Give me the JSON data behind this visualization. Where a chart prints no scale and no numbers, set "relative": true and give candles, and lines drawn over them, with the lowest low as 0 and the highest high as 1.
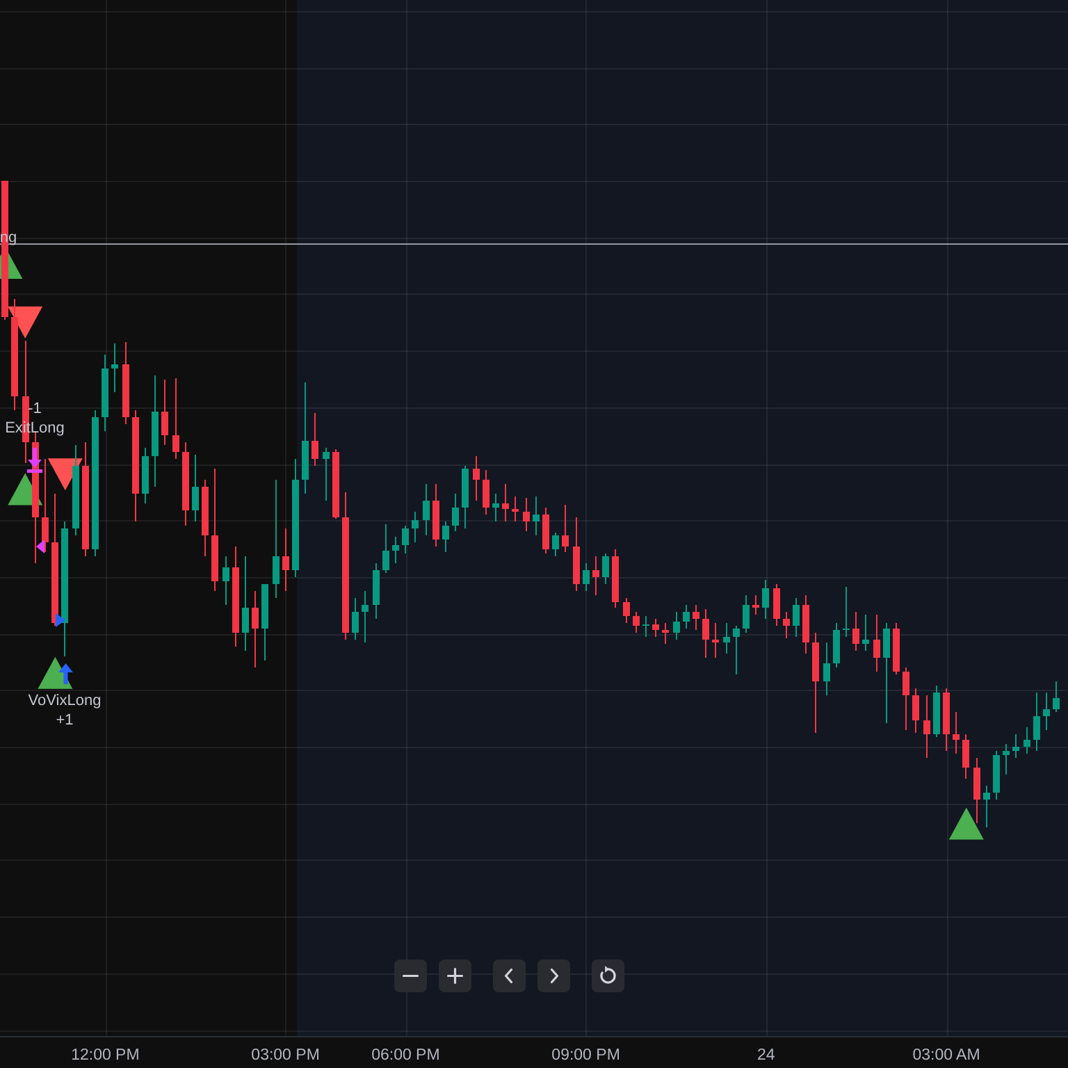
{
  "chart_data": {
    "type": "candlestick",
    "relative": true,
    "categories": [
      null,
      null,
      null,
      null,
      null,
      null,
      null,
      null,
      null,
      null,
      "12:00 PM",
      null,
      null,
      null,
      null,
      null,
      null,
      null,
      null,
      null,
      null,
      null,
      null,
      null,
      null,
      null,
      null,
      null,
      "03:00 PM",
      null,
      null,
      null,
      null,
      null,
      null,
      null,
      null,
      null,
      null,
      null,
      "06:00 PM",
      null,
      null,
      null,
      null,
      null,
      null,
      null,
      null,
      null,
      null,
      null,
      null,
      null,
      null,
      null,
      null,
      null,
      "09:00 PM",
      null,
      null,
      null,
      null,
      null,
      null,
      null,
      null,
      null,
      null,
      null,
      null,
      null,
      null,
      null,
      null,
      null,
      "24",
      null,
      null,
      null,
      null,
      null,
      null,
      null,
      null,
      null,
      null,
      null,
      null,
      null,
      null,
      null,
      null,
      null,
      "03:00 AM",
      null,
      null,
      null,
      null,
      null,
      null,
      null,
      null,
      null,
      null,
      null
    ],
    "ohlc": [
      [
        1,
        1,
        0.785,
        0.789
      ],
      [
        0.789,
        0.817,
        0.645,
        0.667
      ],
      [
        0.667,
        0.753,
        0.563,
        0.596
      ],
      [
        0.596,
        0.613,
        0.409,
        0.48
      ],
      [
        0.48,
        0.57,
        0.426,
        0.441
      ],
      [
        0.441,
        0.516,
        0.312,
        0.316
      ],
      [
        0.316,
        0.473,
        0.265,
        0.462
      ],
      [
        0.462,
        0.591,
        0.452,
        0.559
      ],
      [
        0.559,
        0.596,
        0.419,
        0.43
      ],
      [
        0.43,
        0.645,
        0.419,
        0.634
      ],
      [
        0.634,
        0.731,
        0.613,
        0.71
      ],
      [
        0.71,
        0.748,
        0.673,
        0.716
      ],
      [
        0.716,
        0.751,
        0.624,
        0.634
      ],
      [
        0.634,
        0.645,
        0.473,
        0.516
      ],
      [
        0.516,
        0.587,
        0.501,
        0.574
      ],
      [
        0.574,
        0.699,
        0.527,
        0.643
      ],
      [
        0.643,
        0.692,
        0.591,
        0.606
      ],
      [
        0.606,
        0.695,
        0.57,
        0.581
      ],
      [
        0.581,
        0.596,
        0.467,
        0.49
      ],
      [
        0.49,
        0.576,
        0.473,
        0.527
      ],
      [
        0.527,
        0.538,
        0.419,
        0.452
      ],
      [
        0.452,
        0.555,
        0.366,
        0.381
      ],
      [
        0.381,
        0.419,
        0.344,
        0.402
      ],
      [
        0.402,
        0.434,
        0.28,
        0.301
      ],
      [
        0.301,
        0.419,
        0.273,
        0.34
      ],
      [
        0.34,
        0.366,
        0.247,
        0.308
      ],
      [
        0.308,
        0.376,
        0.258,
        0.376
      ],
      [
        0.376,
        0.538,
        0.355,
        0.419
      ],
      [
        0.419,
        0.462,
        0.366,
        0.398
      ],
      [
        0.398,
        0.57,
        0.387,
        0.538
      ],
      [
        0.538,
        0.688,
        0.516,
        0.598
      ],
      [
        0.598,
        0.641,
        0.559,
        0.57
      ],
      [
        0.57,
        0.587,
        0.505,
        0.581
      ],
      [
        0.581,
        0.585,
        0.477,
        0.48
      ],
      [
        0.48,
        0.518,
        0.29,
        0.301
      ],
      [
        0.301,
        0.355,
        0.29,
        0.333
      ],
      [
        0.333,
        0.366,
        0.286,
        0.344
      ],
      [
        0.344,
        0.409,
        0.323,
        0.398
      ],
      [
        0.398,
        0.469,
        0.394,
        0.428
      ],
      [
        0.428,
        0.449,
        0.409,
        0.437
      ],
      [
        0.437,
        0.467,
        0.424,
        0.462
      ],
      [
        0.462,
        0.488,
        0.441,
        0.475
      ],
      [
        0.475,
        0.531,
        0.452,
        0.505
      ],
      [
        0.505,
        0.531,
        0.434,
        0.445
      ],
      [
        0.445,
        0.473,
        0.426,
        0.467
      ],
      [
        0.467,
        0.516,
        0.458,
        0.495
      ],
      [
        0.495,
        0.559,
        0.462,
        0.555
      ],
      [
        0.555,
        0.574,
        0.505,
        0.538
      ],
      [
        0.538,
        0.553,
        0.484,
        0.495
      ],
      [
        0.495,
        0.516,
        0.473,
        0.501
      ],
      [
        0.501,
        0.531,
        0.473,
        0.492
      ],
      [
        0.492,
        0.512,
        0.473,
        0.488
      ],
      [
        0.488,
        0.51,
        0.458,
        0.473
      ],
      [
        0.473,
        0.512,
        0.452,
        0.484
      ],
      [
        0.484,
        0.495,
        0.424,
        0.43
      ],
      [
        0.43,
        0.456,
        0.419,
        0.452
      ],
      [
        0.452,
        0.499,
        0.426,
        0.434
      ],
      [
        0.434,
        0.48,
        0.366,
        0.376
      ],
      [
        0.376,
        0.409,
        0.366,
        0.398
      ],
      [
        0.398,
        0.419,
        0.359,
        0.387
      ],
      [
        0.387,
        0.424,
        0.376,
        0.419
      ],
      [
        0.419,
        0.43,
        0.34,
        0.348
      ],
      [
        0.348,
        0.355,
        0.316,
        0.327
      ],
      [
        0.327,
        0.333,
        0.301,
        0.312
      ],
      [
        0.312,
        0.327,
        0.295,
        0.314
      ],
      [
        0.314,
        0.323,
        0.295,
        0.305
      ],
      [
        0.305,
        0.316,
        0.284,
        0.301
      ],
      [
        0.301,
        0.333,
        0.29,
        0.318
      ],
      [
        0.318,
        0.344,
        0.308,
        0.333
      ],
      [
        0.333,
        0.344,
        0.305,
        0.323
      ],
      [
        0.323,
        0.338,
        0.262,
        0.29
      ],
      [
        0.29,
        0.316,
        0.262,
        0.286
      ],
      [
        0.286,
        0.316,
        0.269,
        0.295
      ],
      [
        0.295,
        0.312,
        0.237,
        0.308
      ],
      [
        0.308,
        0.359,
        0.301,
        0.344
      ],
      [
        0.344,
        0.359,
        0.329,
        0.34
      ],
      [
        0.34,
        0.383,
        0.323,
        0.37
      ],
      [
        0.37,
        0.376,
        0.312,
        0.323
      ],
      [
        0.323,
        0.333,
        0.292,
        0.312
      ],
      [
        0.312,
        0.355,
        0.295,
        0.344
      ],
      [
        0.344,
        0.359,
        0.269,
        0.286
      ],
      [
        0.286,
        0.301,
        0.146,
        0.226
      ],
      [
        0.226,
        0.286,
        0.204,
        0.254
      ],
      [
        0.254,
        0.316,
        0.247,
        0.305
      ],
      [
        0.305,
        0.372,
        0.295,
        0.308
      ],
      [
        0.308,
        0.333,
        0.273,
        0.284
      ],
      [
        0.284,
        0.329,
        0.273,
        0.29
      ],
      [
        0.29,
        0.329,
        0.241,
        0.262
      ],
      [
        0.262,
        0.316,
        0.161,
        0.308
      ],
      [
        0.308,
        0.316,
        0.237,
        0.241
      ],
      [
        0.241,
        0.247,
        0.151,
        0.204
      ],
      [
        0.204,
        0.215,
        0.146,
        0.166
      ],
      [
        0.166,
        0.204,
        0.108,
        0.144
      ],
      [
        0.144,
        0.219,
        0.14,
        0.209
      ],
      [
        0.209,
        0.215,
        0.118,
        0.144
      ],
      [
        0.144,
        0.178,
        0.114,
        0.135
      ],
      [
        0.135,
        0.144,
        0.075,
        0.092
      ],
      [
        0.092,
        0.108,
        0.006,
        0.043
      ],
      [
        0.043,
        0.065,
        0,
        0.054
      ],
      [
        0.054,
        0.118,
        0.043,
        0.112
      ],
      [
        0.112,
        0.129,
        0.082,
        0.118
      ],
      [
        0.118,
        0.144,
        0.108,
        0.125
      ],
      [
        0.125,
        0.155,
        0.114,
        0.135
      ],
      [
        0.135,
        0.209,
        0.118,
        0.172
      ],
      [
        0.172,
        0.209,
        0.151,
        0.183
      ],
      [
        0.183,
        0.226,
        0.178,
        0.2
      ]
    ],
    "colors": [
      "#f23645",
      "#f23645",
      "#f23645",
      "#f23645",
      "#f23645",
      "#f23645",
      "#089981",
      "#089981",
      "#f23645",
      "#089981",
      "#089981",
      "#089981",
      "#f23645",
      "#f23645",
      "#089981",
      "#089981",
      "#f23645",
      "#f23645",
      "#f23645",
      "#089981",
      "#f23645",
      "#f23645",
      "#089981",
      "#f23645",
      "#089981",
      "#f23645",
      "#089981",
      "#089981",
      "#f23645",
      "#089981",
      "#089981",
      "#f23645",
      "#089981",
      "#f23645",
      "#f23645",
      "#089981",
      "#089981",
      "#089981",
      "#089981",
      "#089981",
      "#089981",
      "#089981",
      "#089981",
      "#f23645",
      "#089981",
      "#089981",
      "#089981",
      "#f23645",
      "#f23645",
      "#089981",
      "#f23645",
      "#f23645",
      "#f23645",
      "#089981",
      "#f23645",
      "#089981",
      "#f23645",
      "#f23645",
      "#089981",
      "#f23645",
      "#089981",
      "#f23645",
      "#f23645",
      "#f23645",
      "#089981",
      "#f23645",
      "#f23645",
      "#089981",
      "#089981",
      "#f23645",
      "#f23645",
      "#f23645",
      "#089981",
      "#089981",
      "#089981",
      "#f23645",
      "#089981",
      "#f23645",
      "#f23645",
      "#089981",
      "#f23645",
      "#f23645",
      "#089981",
      "#089981",
      "#089981",
      "#f23645",
      "#089981",
      "#f23645",
      "#089981",
      "#f23645",
      "#f23645",
      "#f23645",
      "#f23645",
      "#089981",
      "#f23645",
      "#f23645",
      "#f23645",
      "#f23645",
      "#089981",
      "#089981",
      "#089981",
      "#089981",
      "#089981",
      "#089981",
      "#089981",
      "#089981"
    ],
    "grid": true,
    "ref_lines": [
      {
        "axis": "y",
        "value": 0.903,
        "color": "#9598a1"
      }
    ],
    "series": [
      {
        "type": "scatter",
        "marker": "triangle",
        "color": "#4caf50",
        "values": [
          0.873,
          null,
          0.523,
          null,
          null,
          0.239,
          null,
          null,
          null,
          null,
          null,
          null,
          null,
          null,
          null,
          null,
          null,
          null,
          null,
          null,
          null,
          null,
          null,
          null,
          null,
          null,
          null,
          null,
          null,
          null,
          null,
          null,
          null,
          null,
          null,
          null,
          null,
          null,
          null,
          null,
          null,
          null,
          null,
          null,
          null,
          null,
          null,
          null,
          null,
          null,
          null,
          null,
          null,
          null,
          null,
          null,
          null,
          null,
          null,
          null,
          null,
          null,
          null,
          null,
          null,
          null,
          null,
          null,
          null,
          null,
          null,
          null,
          null,
          null,
          null,
          null,
          null,
          null,
          null,
          null,
          null,
          null,
          null,
          null,
          null,
          null,
          null,
          null,
          null,
          null,
          null,
          null,
          null,
          null,
          null,
          null,
          0.006,
          null,
          null,
          null,
          null,
          null,
          null,
          null,
          null,
          null
        ]
      },
      {
        "type": "scatter",
        "marker": "triangle-down",
        "color": "#ff5252",
        "values": [
          null,
          null,
          0.781,
          null,
          null,
          null,
          0.546,
          null,
          null,
          null,
          null,
          null,
          null,
          null,
          null,
          null,
          null,
          null,
          null,
          null,
          null,
          null,
          null,
          null,
          null,
          null,
          null,
          null,
          null,
          null,
          null,
          null,
          null,
          null,
          null,
          null,
          null,
          null,
          null,
          null,
          null,
          null,
          null,
          null,
          null,
          null,
          null,
          null,
          null,
          null,
          null,
          null,
          null,
          null,
          null,
          null,
          null,
          null,
          null,
          null,
          null,
          null,
          null,
          null,
          null,
          null,
          null,
          null,
          null,
          null,
          null,
          null,
          null,
          null,
          null,
          null,
          null,
          null,
          null,
          null,
          null,
          null,
          null,
          null,
          null,
          null,
          null,
          null,
          null,
          null,
          null,
          null,
          null,
          null,
          null,
          null,
          null,
          null,
          null,
          null,
          null,
          null,
          null,
          null,
          null,
          null
        ]
      }
    ],
    "annotations": [
      {
        "text": "ng",
        "y": 0.912
      },
      {
        "text": "-1",
        "y": 0.647
      },
      {
        "text": "ExitLong",
        "y": 0.617
      },
      "VoVixLong",
      "+1"
    ]
  }
}
